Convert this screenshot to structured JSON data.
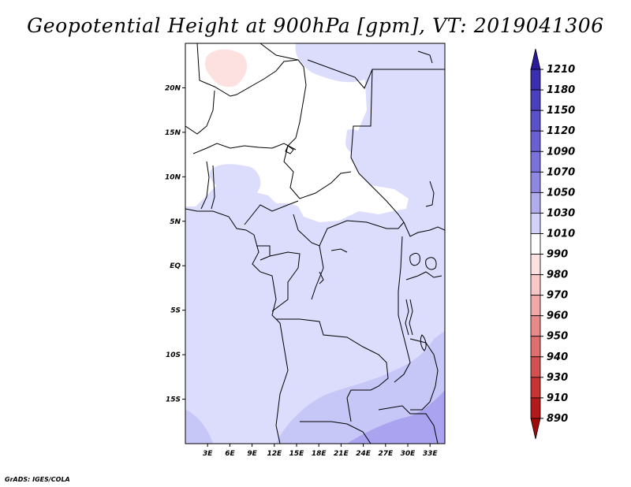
{
  "title": "Geopotential Height at 900hPa [gpm], VT: 2019041306",
  "credit": "GrADS: IGES/COLA",
  "map": {
    "lat_labels": [
      "20N",
      "15N",
      "10N",
      "5N",
      "EQ",
      "5S",
      "10S",
      "15S"
    ],
    "lat_values": [
      20,
      15,
      10,
      5,
      0,
      -5,
      -10,
      -15
    ],
    "lon_labels": [
      "3E",
      "6E",
      "9E",
      "12E",
      "15E",
      "18E",
      "21E",
      "24E",
      "27E",
      "30E",
      "33E"
    ],
    "lon_values": [
      3,
      6,
      9,
      12,
      15,
      18,
      21,
      24,
      27,
      30,
      33
    ],
    "lon_range": [
      0,
      35
    ],
    "lat_range": [
      -20,
      25
    ],
    "shading_colors": {
      "c990": "#fde0e0",
      "c1010": "#ffffff",
      "c1030": "#dcdcfc",
      "c1050": "#c6c6f7",
      "c1070": "#a9a3f0"
    }
  },
  "colorbar": {
    "labels": [
      "1210",
      "1180",
      "1150",
      "1120",
      "1090",
      "1070",
      "1050",
      "1030",
      "1010",
      "990",
      "980",
      "970",
      "960",
      "950",
      "940",
      "930",
      "910",
      "890"
    ],
    "colors": [
      "#2a1a9a",
      "#3a2db0",
      "#4a3fbf",
      "#5a50c9",
      "#6a60d2",
      "#7a71da",
      "#8f88e3",
      "#b0acee",
      "#d3d1f7",
      "#ffffff",
      "#fde0e0",
      "#f8c8c8",
      "#f0a8a8",
      "#e88a8a",
      "#df6e6e",
      "#d55050",
      "#c83434",
      "#b41a1a",
      "#a00a0a"
    ]
  }
}
